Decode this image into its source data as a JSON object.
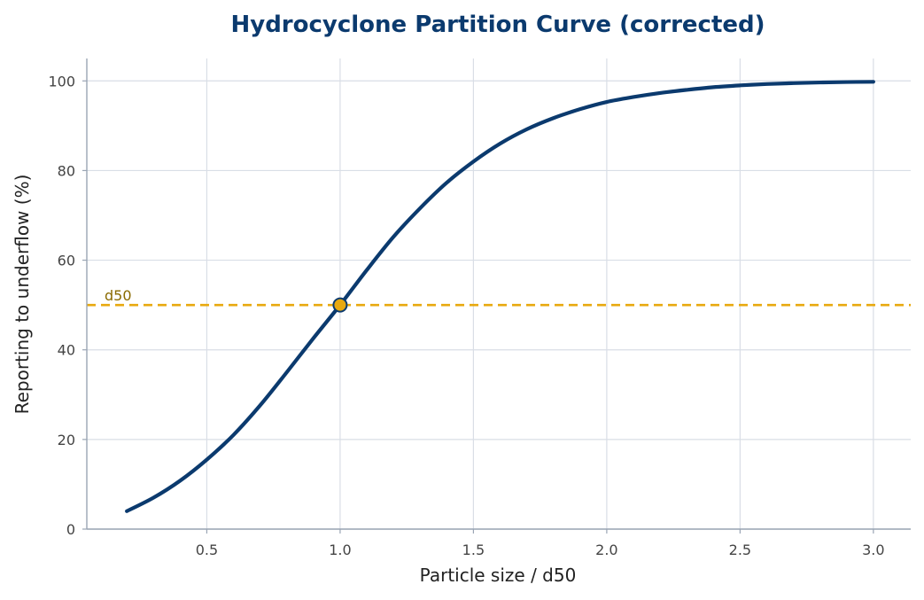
{
  "chart_data": {
    "type": "line",
    "title": "Hydrocyclone Partition Curve (corrected)",
    "xlabel": "Particle size / d50",
    "ylabel": "Reporting to underflow (%)",
    "xlim": [
      0.05,
      3.14
    ],
    "ylim": [
      0,
      105
    ],
    "xticks": [
      0.5,
      1.0,
      1.5,
      2.0,
      2.5,
      3.0
    ],
    "xtick_labels": [
      "0.5",
      "1.0",
      "1.5",
      "2.0",
      "2.5",
      "3.0"
    ],
    "yticks": [
      0,
      20,
      40,
      60,
      80,
      100
    ],
    "ytick_labels": [
      "0",
      "20",
      "40",
      "60",
      "80",
      "100"
    ],
    "grid": true,
    "series": [
      {
        "color": "#0b3a6e",
        "x": [
          0.2,
          0.3,
          0.4,
          0.5,
          0.6,
          0.7,
          0.8,
          0.9,
          1.0,
          1.1,
          1.2,
          1.3,
          1.4,
          1.5,
          1.6,
          1.7,
          1.8,
          1.9,
          2.0,
          2.1,
          2.2,
          2.3,
          2.4,
          2.5,
          2.6,
          2.7,
          2.8,
          2.9,
          3.0
        ],
        "y": [
          4.0,
          7.0,
          10.8,
          15.5,
          21.0,
          27.6,
          35.0,
          42.6,
          50.0,
          57.8,
          65.2,
          71.6,
          77.3,
          82.0,
          86.0,
          89.2,
          91.7,
          93.7,
          95.3,
          96.4,
          97.3,
          98.0,
          98.6,
          99.0,
          99.3,
          99.5,
          99.65,
          99.75,
          99.8
        ]
      }
    ],
    "reference_line": {
      "y": 50,
      "label": "d50",
      "color": "#e8a90f"
    },
    "marker_point": {
      "x": 1.0,
      "y": 50
    }
  }
}
